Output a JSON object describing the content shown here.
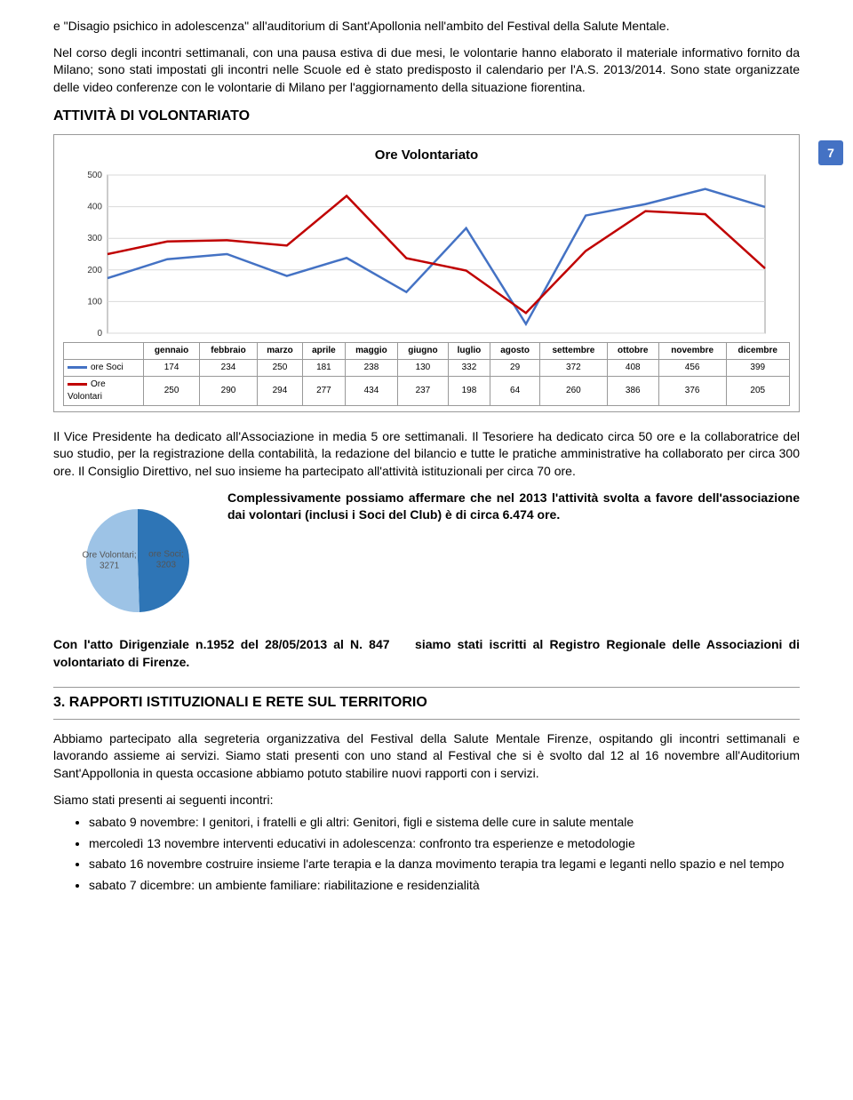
{
  "intro_para": "e \"Disagio psichico in adolescenza\" all'auditorium di Sant'Apollonia nell'ambito del Festival della Salute Mentale.",
  "para2": "Nel corso degli incontri settimanali, con una pausa estiva di due mesi, le volontarie hanno elaborato il materiale informativo fornito da Milano; sono stati impostati gli incontri nelle Scuole ed è stato predisposto il calendario per l'A.S. 2013/2014. Sono state organizzate delle video conferenze con le volontarie di Milano per l'aggiornamento della situazione fiorentina.",
  "attivita_title": "ATTIVITÀ DI VOLONTARIATO",
  "page_num": "7",
  "chart": {
    "title": "Ore Volontariato",
    "y_ticks": [
      0,
      100,
      200,
      300,
      400,
      500
    ],
    "ylim": [
      0,
      500
    ],
    "months": [
      "gennaio",
      "febbraio",
      "marzo",
      "aprile",
      "maggio",
      "giugno",
      "luglio",
      "agosto",
      "settembre",
      "ottobre",
      "novembre",
      "dicembre"
    ],
    "series": [
      {
        "name": "ore Soci",
        "color": "#4472c4",
        "values": [
          174,
          234,
          250,
          181,
          238,
          130,
          332,
          29,
          372,
          408,
          456,
          399
        ]
      },
      {
        "name": "Ore Volontari",
        "color": "#c00000",
        "values": [
          250,
          290,
          294,
          277,
          434,
          237,
          198,
          64,
          260,
          386,
          376,
          205
        ]
      }
    ],
    "plot_bg": "#ffffff",
    "grid_color": "#d9d9d9",
    "line_width": 2.5,
    "font_size_axis": 10
  },
  "vice_para": "Il Vice Presidente ha dedicato all'Associazione in media 5 ore settimanali. Il Tesoriere ha dedicato circa 50 ore e la collaboratrice del suo studio, per la registrazione della contabilità, la redazione del bilancio e tutte le pratiche amministrative ha collaborato per circa 300 ore. Il Consiglio Direttivo, nel suo insieme ha partecipato all'attività istituzionali per circa 70 ore.",
  "bold_para": "Complessivamente possiamo affermare che nel 2013 l'attività svolta a favore dell'associazione dai volontari (inclusi i Soci del Club) è di circa 6.474 ore.",
  "pie": {
    "slices": [
      {
        "label": "ore Soci;",
        "value": 3203,
        "color": "#2e75b6"
      },
      {
        "label": "Ore Volontari;",
        "value": 3271,
        "color": "#9dc3e6"
      }
    ],
    "bg": "#ffffff",
    "label_fontsize": 10
  },
  "atto_para_a": "Con l'atto Dirigenziale n.1952 del 28/05/2013 al N. 847",
  "atto_para_b": "siamo stati iscritti al Registro Regionale delle Associazioni di volontariato di Firenze.",
  "section3_title": "3. RAPPORTI ISTITUZIONALI E RETE SUL TERRITORIO",
  "rapporti_para": "Abbiamo partecipato alla segreteria organizzativa del Festival della Salute Mentale Firenze, ospitando gli incontri settimanali e lavorando assieme ai servizi. Siamo stati presenti con uno stand al Festival che si è svolto dal 12 al 16 novembre all'Auditorium Sant'Appollonia in questa occasione abbiamo potuto stabilire nuovi rapporti con i servizi.",
  "presenti_intro": "Siamo stati presenti ai seguenti incontri:",
  "bullets": [
    "sabato 9 novembre: I genitori, i fratelli e gli altri: Genitori, figli e sistema delle cure in salute mentale",
    "mercoledì 13 novembre interventi educativi in adolescenza: confronto tra esperienze e metodologie",
    "sabato 16 novembre costruire insieme l'arte terapia e la danza movimento terapia tra legami e leganti nello spazio e nel tempo",
    "sabato 7 dicembre: un ambiente familiare: riabilitazione e residenzialità"
  ]
}
